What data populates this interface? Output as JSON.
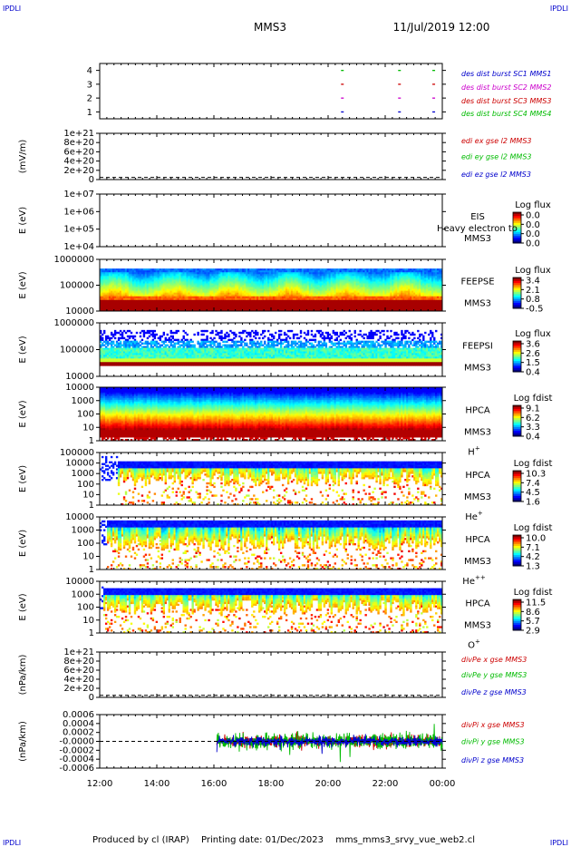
{
  "header": {
    "corner_label": "IPDLI",
    "spacecraft": "MMS3",
    "datetime": "11/Jul/2019 12:00"
  },
  "footer": {
    "produced_by": "Produced by cl (IRAP)",
    "printing_date": "Printing date: 01/Dec/2023",
    "filename": "mms_mms3_srvy_vue_web2.cl"
  },
  "time_axis": {
    "ticks": [
      "12:00",
      "14:00",
      "16:00",
      "18:00",
      "20:00",
      "22:00",
      "00:00"
    ]
  },
  "colors": {
    "mms1": "#0000cc",
    "mms2": "#cc00cc",
    "mms3": "#cc0000",
    "mms4": "#00bb00",
    "x": "#cc0000",
    "y": "#00bb00",
    "z": "#0000cc"
  },
  "chart_data": [
    {
      "type": "scatter",
      "panel": "burst",
      "yticks": [
        "1",
        "2",
        "3",
        "4"
      ],
      "ylim": [
        0.5,
        4.5
      ],
      "legend": [
        "des dist burst SC1 MMS1",
        "des dist burst SC2 MMS2",
        "des dist burst SC3 MMS3",
        "des dist burst SC4 MMS4"
      ],
      "series": [
        {
          "name": "des dist burst SC1 MMS1",
          "y": 1,
          "x_hours": [
            20.5,
            22.5,
            23.7
          ]
        },
        {
          "name": "des dist burst SC2 MMS2",
          "y": 2,
          "x_hours": [
            20.5,
            22.5,
            23.7
          ]
        },
        {
          "name": "des dist burst SC3 MMS3",
          "y": 3,
          "x_hours": [
            20.5,
            22.5,
            23.7
          ]
        },
        {
          "name": "des dist burst SC4 MMS4",
          "y": 4,
          "x_hours": [
            20.5,
            22.5,
            23.7
          ]
        }
      ]
    },
    {
      "type": "line",
      "panel": "edi",
      "ylabel": "(mV/m)",
      "yticks": [
        "0",
        "2e+20",
        "4e+20",
        "6e+20",
        "8e+20",
        "1e+21"
      ],
      "ylim": [
        -5e+19,
        1.05e+21
      ],
      "legend": [
        "edi ex gse l2 MMS3",
        "edi ey gse l2 MMS3",
        "edi ez gse l2 MMS3"
      ]
    },
    {
      "type": "heatmap",
      "panel": "eis",
      "ylabel": "E (eV)",
      "yticks": [
        "1e+04",
        "1e+05",
        "1e+06",
        "1e+07"
      ],
      "instrument": "EIS",
      "spacecraft": "MMS3",
      "overlay_text": "Heavy electron to",
      "colorbar_title": "Log flux",
      "colorbar_ticks": [
        "0.0",
        "0.0",
        "0.0",
        "0.0"
      ]
    },
    {
      "type": "heatmap",
      "panel": "feepse",
      "ylabel": "E (eV)",
      "yticks": [
        "10000",
        "100000",
        "1000000"
      ],
      "instrument": "FEEPSE",
      "spacecraft": "MMS3",
      "colorbar_title": "Log flux",
      "colorbar_ticks": [
        "3.4",
        "2.1",
        "0.8",
        "-0.5"
      ]
    },
    {
      "type": "heatmap",
      "panel": "feepsi",
      "ylabel": "E (eV)",
      "yticks": [
        "10000",
        "100000",
        "1000000"
      ],
      "instrument": "FEEPSI",
      "spacecraft": "MMS3",
      "colorbar_title": "Log flux",
      "colorbar_ticks": [
        "3.6",
        "2.6",
        "1.5",
        "0.4"
      ]
    },
    {
      "type": "heatmap",
      "panel": "hpca-h",
      "ylabel": "E (eV)",
      "yticks": [
        "1",
        "10",
        "100",
        "1000",
        "10000"
      ],
      "instrument": "HPCA",
      "spacecraft": "MMS3",
      "species_base": "H",
      "species_sup": "+",
      "colorbar_title": "Log fdist",
      "colorbar_ticks": [
        "9.1",
        "6.2",
        "3.3",
        "0.4"
      ]
    },
    {
      "type": "heatmap",
      "panel": "hpca-he",
      "ylabel": "E (eV)",
      "yticks": [
        "1",
        "10",
        "100",
        "1000",
        "10000",
        "100000"
      ],
      "instrument": "HPCA",
      "spacecraft": "MMS3",
      "species_base": "He",
      "species_sup": "+",
      "colorbar_title": "Log fdist",
      "colorbar_ticks": [
        "10.3",
        "7.4",
        "4.5",
        "1.6"
      ]
    },
    {
      "type": "heatmap",
      "panel": "hpca-hepp",
      "ylabel": "E (eV)",
      "yticks": [
        "1",
        "10",
        "100",
        "1000",
        "10000"
      ],
      "instrument": "HPCA",
      "spacecraft": "MMS3",
      "species_base": "He",
      "species_sup": "++",
      "colorbar_title": "Log fdist",
      "colorbar_ticks": [
        "10.0",
        "7.1",
        "4.2",
        "1.3"
      ]
    },
    {
      "type": "heatmap",
      "panel": "hpca-o",
      "ylabel": "E (eV)",
      "yticks": [
        "1",
        "10",
        "100",
        "1000",
        "10000"
      ],
      "instrument": "HPCA",
      "spacecraft": "MMS3",
      "species_base": "O",
      "species_sup": "+",
      "colorbar_title": "Log fdist",
      "colorbar_ticks": [
        "11.5",
        "8.6",
        "5.7",
        "2.9"
      ]
    },
    {
      "type": "line",
      "panel": "divpe",
      "ylabel": "(nPa/km)",
      "yticks": [
        "0",
        "2e+20",
        "4e+20",
        "6e+20",
        "8e+20",
        "1e+21"
      ],
      "ylim": [
        -5e+19,
        1.05e+21
      ],
      "legend": [
        "divPe x gse MMS3",
        "divPe y gse MMS3",
        "divPe z gse MMS3"
      ]
    },
    {
      "type": "line",
      "panel": "divpi",
      "ylabel": "(nPa/km)",
      "yticks": [
        "-0.0006",
        "-0.0004",
        "-0.0002",
        "-0.0000",
        "0.0002",
        "0.0004",
        "0.0006"
      ],
      "ylim": [
        -0.00065,
        0.00065
      ],
      "data_start_hour": 16.1,
      "data_end_hour": 24.0,
      "legend": [
        "divPi x gse MMS3",
        "divPi y gse MMS3",
        "divPi z gse MMS3"
      ]
    }
  ]
}
